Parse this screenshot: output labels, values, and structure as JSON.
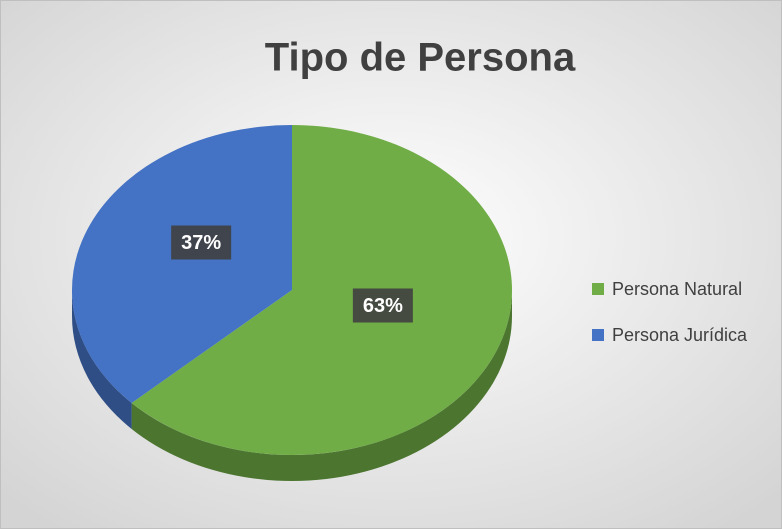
{
  "chart_data": {
    "type": "pie",
    "title": "Tipo de Persona",
    "categories": [
      "Persona Natural",
      "Persona Jurídica"
    ],
    "values": [
      63,
      37
    ],
    "value_labels": [
      "63%",
      "37%"
    ],
    "colors": [
      "#70ad47",
      "#4472c4"
    ],
    "legend": "right"
  }
}
